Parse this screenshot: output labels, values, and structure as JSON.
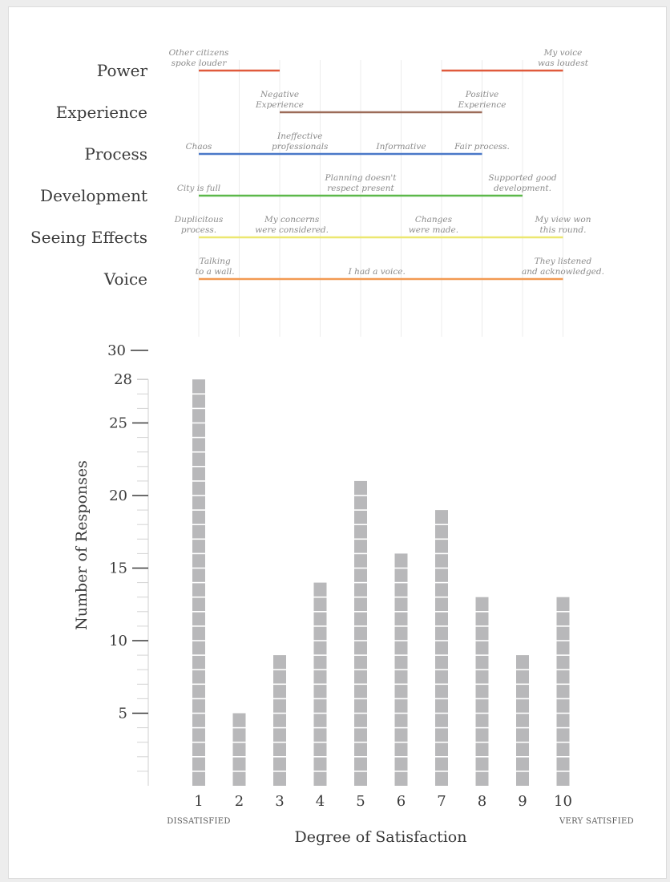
{
  "chart_data": [
    {
      "type": "line",
      "title": "",
      "x_range": [
        1,
        10
      ],
      "grid": true,
      "series": [
        {
          "name": "Power",
          "color": "#e05a3c",
          "segments": [
            [
              1,
              3
            ],
            [
              7,
              10
            ]
          ],
          "labels": [
            {
              "x": 1,
              "text": "Other citizens spoke louder"
            },
            {
              "x": 10,
              "text": "My voice was loudest"
            }
          ]
        },
        {
          "name": "Experience",
          "color": "#9c6b58",
          "segments": [
            [
              3,
              8
            ]
          ],
          "labels": [
            {
              "x": 3,
              "text": "Negative Experience"
            },
            {
              "x": 8,
              "text": "Positive Experience"
            }
          ]
        },
        {
          "name": "Process",
          "color": "#4a78c8",
          "segments": [
            [
              1,
              8
            ]
          ],
          "labels": [
            {
              "x": 1,
              "text": "Chaos"
            },
            {
              "x": 3.5,
              "text": "Ineffective professionals"
            },
            {
              "x": 6,
              "text": "Informative"
            },
            {
              "x": 8,
              "text": "Fair process."
            }
          ]
        },
        {
          "name": "Development",
          "color": "#5cb84a",
          "segments": [
            [
              1,
              9
            ]
          ],
          "labels": [
            {
              "x": 1,
              "text": "City is full"
            },
            {
              "x": 5,
              "text": "Planning doesn't respect present"
            },
            {
              "x": 9,
              "text": "Supported good development."
            }
          ]
        },
        {
          "name": "Seeing Effects",
          "color": "#ece770",
          "segments": [
            [
              1,
              10
            ]
          ],
          "labels": [
            {
              "x": 1,
              "text": "Duplicitous process."
            },
            {
              "x": 3.3,
              "text": "My concerns were considered."
            },
            {
              "x": 6.8,
              "text": "Changes were made."
            },
            {
              "x": 10,
              "text": "My view won this round."
            }
          ]
        },
        {
          "name": "Voice",
          "color": "#f29a52",
          "segments": [
            [
              1,
              10
            ]
          ],
          "labels": [
            {
              "x": 1.4,
              "text": "Talking to a wall."
            },
            {
              "x": 5.4,
              "text": "I had a voice."
            },
            {
              "x": 10,
              "text": "They listened and acknowledged."
            }
          ]
        }
      ]
    },
    {
      "type": "bar",
      "title": "",
      "categories": [
        "1",
        "2",
        "3",
        "4",
        "5",
        "6",
        "7",
        "8",
        "9",
        "10"
      ],
      "values": [
        28,
        5,
        9,
        14,
        21,
        16,
        19,
        13,
        9,
        13
      ],
      "xlabel": "Degree of Satisfaction",
      "ylabel": "Number of Responses",
      "ylim": [
        0,
        30
      ],
      "yticks": [
        "5",
        "10",
        "15",
        "20",
        "25",
        "28",
        "30"
      ],
      "x_end_labels": {
        "left": "DISSATISFIED",
        "right": "VERY SATISFIED"
      },
      "bar_color": "#b8b8ba",
      "grid": false
    }
  ]
}
